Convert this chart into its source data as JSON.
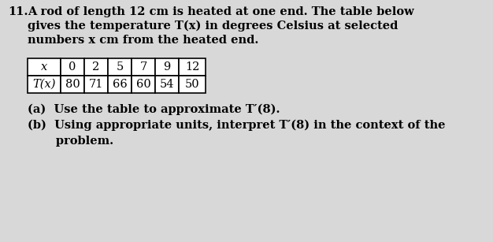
{
  "problem_number": "11.",
  "intro_line1": "A rod of length 12 cm is heated at one end. The table below",
  "intro_line2": "gives the temperature T(x) in degrees Celsius at selected",
  "intro_line3": "numbers x cm from the heated end.",
  "table_row1": [
    "x",
    "0",
    "2",
    "5",
    "7",
    "9",
    "12"
  ],
  "table_row2": [
    "T(x)",
    "80",
    "71",
    "66",
    "60",
    "54",
    "50"
  ],
  "part_a": "(a)  Use the table to approximate T′(8).",
  "part_b_1": "(b)  Using appropriate units, interpret T′(8) in the context of the",
  "part_b_2": "       problem.",
  "bg_color": "#d8d8d8",
  "text_color": "#000000",
  "font_size": 10.5,
  "table_font_size": 10.5
}
